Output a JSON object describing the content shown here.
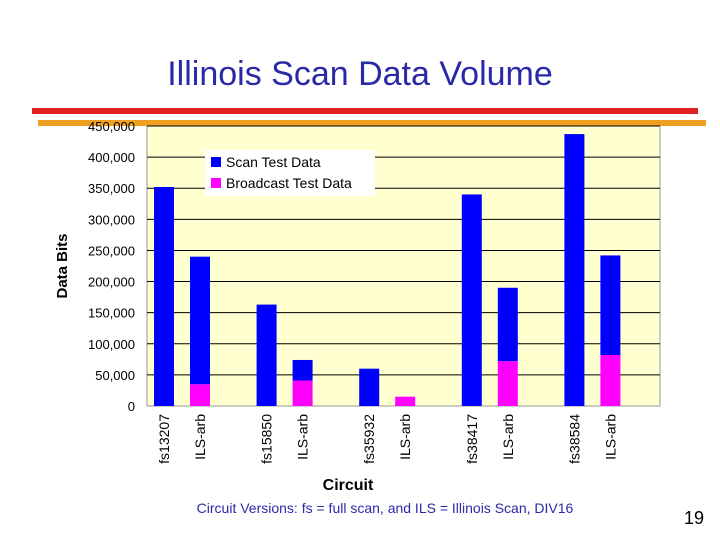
{
  "slide": {
    "title": "Illinois Scan Data Volume",
    "footnote": "Circuit Versions:  fs = full scan, and ILS = Illinois Scan, DIV16",
    "page_number": "19"
  },
  "colors": {
    "title": "#2a2aa8",
    "plot_bg": "#ffffd0",
    "scan_series": "#0000ff",
    "broadcast_series": "#ff00ff",
    "rule_red": "#e02020",
    "rule_gold": "#f0a020"
  },
  "chart_data": {
    "type": "bar",
    "stacked": true,
    "categories": [
      "fs13207",
      "ILS-arb",
      "fs15850",
      "ILS-arb",
      "fs35932",
      "ILS-arb",
      "fs38417",
      "ILS-arb",
      "fs38584",
      "ILS-arb"
    ],
    "series": [
      {
        "name": "Scan Test Data",
        "color": "#0000ff",
        "values": [
          352000,
          205000,
          163000,
          33000,
          60000,
          0,
          340000,
          118000,
          437000,
          160000
        ]
      },
      {
        "name": "Broadcast Test Data",
        "color": "#ff00ff",
        "values": [
          0,
          35000,
          0,
          41000,
          0,
          15000,
          0,
          72000,
          0,
          82000
        ]
      }
    ],
    "xlabel": "Circuit",
    "ylabel": "Data Bits",
    "ylim": [
      0,
      450000
    ],
    "yticks": [
      "0",
      "50,000",
      "100,000",
      "150,000",
      "200,000",
      "250,000",
      "300,000",
      "350,000",
      "400,000",
      "450,000"
    ],
    "grid": true,
    "legend_position": "top-center"
  }
}
